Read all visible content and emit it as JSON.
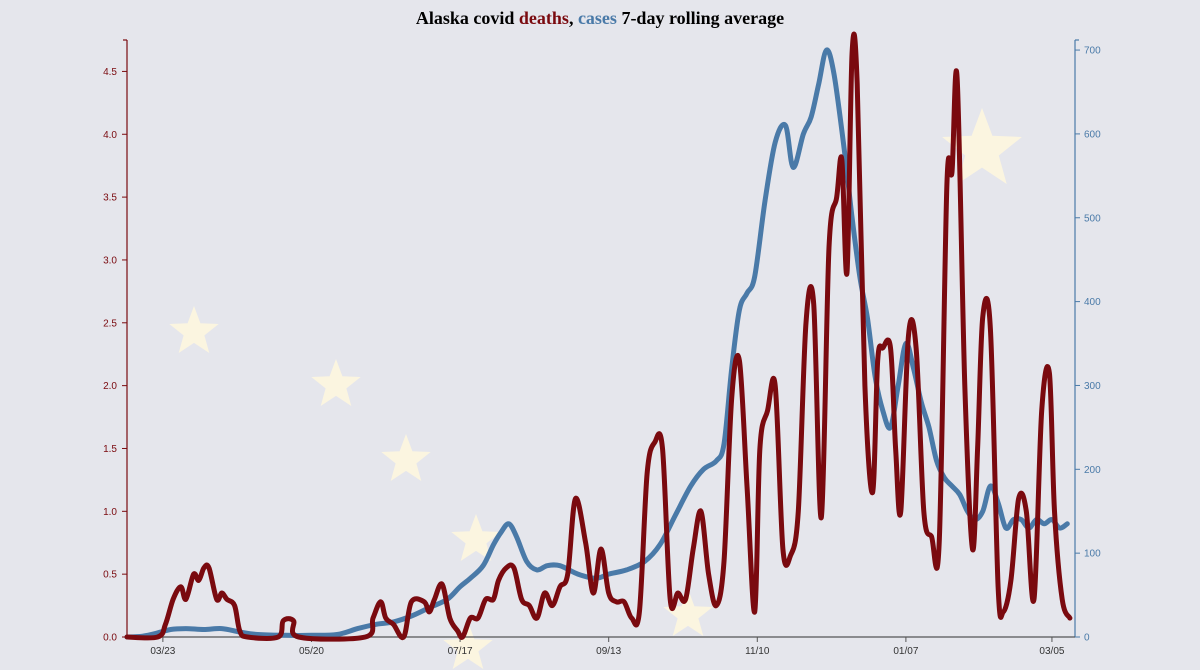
{
  "colors": {
    "background": "#e5e6ec",
    "deaths": "#7a0a0f",
    "cases": "#4a7aa8",
    "axis": "#555555",
    "star": "#fff7de"
  },
  "chart_data": {
    "type": "line",
    "title": {
      "part1": "Alaska covid ",
      "part2": "deaths",
      "part3": ", ",
      "part4": "cases",
      "part5": " 7-day rolling average"
    },
    "x_range": [
      "2020-03-09",
      "2021-03-14"
    ],
    "x_ticks": [
      {
        "date": "2020-03-23",
        "label": "03/23"
      },
      {
        "date": "2020-05-20",
        "label": "05/20"
      },
      {
        "date": "2020-07-17",
        "label": "07/17"
      },
      {
        "date": "2020-09-13",
        "label": "09/13"
      },
      {
        "date": "2020-11-10",
        "label": "11/10"
      },
      {
        "date": "2021-01-07",
        "label": "01/07"
      },
      {
        "date": "2021-03-05",
        "label": "03/05"
      }
    ],
    "y_left": {
      "range": [
        0,
        4.75
      ],
      "ticks": [
        {
          "value": 0,
          "label": "0.0"
        },
        {
          "value": 0.5,
          "label": "0.5"
        },
        {
          "value": 1.0,
          "label": "1.0"
        },
        {
          "value": 1.5,
          "label": "1.5"
        },
        {
          "value": 2.0,
          "label": "2.0"
        },
        {
          "value": 2.5,
          "label": "2.5"
        },
        {
          "value": 3.0,
          "label": "3.0"
        },
        {
          "value": 3.5,
          "label": "3.5"
        },
        {
          "value": 4.0,
          "label": "4.0"
        },
        {
          "value": 4.5,
          "label": "4.5"
        }
      ]
    },
    "y_right": {
      "range": [
        0,
        712
      ],
      "ticks": [
        {
          "value": 0,
          "label": "0"
        },
        {
          "value": 100,
          "label": "100"
        },
        {
          "value": 200,
          "label": "200"
        },
        {
          "value": 300,
          "label": "300"
        },
        {
          "value": 400,
          "label": "400"
        },
        {
          "value": 500,
          "label": "500"
        },
        {
          "value": 600,
          "label": "600"
        },
        {
          "value": 700,
          "label": "700"
        }
      ]
    },
    "grid": false,
    "series": [
      {
        "name": "deaths",
        "axis": "left",
        "points": [
          [
            "2020-03-09",
            0
          ],
          [
            "2020-03-21",
            0
          ],
          [
            "2020-03-24",
            0.1
          ],
          [
            "2020-03-27",
            0.3
          ],
          [
            "2020-03-30",
            0.4
          ],
          [
            "2020-04-01",
            0.3
          ],
          [
            "2020-04-04",
            0.5
          ],
          [
            "2020-04-06",
            0.45
          ],
          [
            "2020-04-08",
            0.55
          ],
          [
            "2020-04-10",
            0.55
          ],
          [
            "2020-04-13",
            0.3
          ],
          [
            "2020-04-15",
            0.35
          ],
          [
            "2020-04-17",
            0.3
          ],
          [
            "2020-04-20",
            0.25
          ],
          [
            "2020-04-22",
            0.05
          ],
          [
            "2020-04-25",
            0
          ],
          [
            "2020-05-07",
            0
          ],
          [
            "2020-05-09",
            0.13
          ],
          [
            "2020-05-13",
            0.13
          ],
          [
            "2020-05-15",
            0
          ],
          [
            "2020-06-10",
            0
          ],
          [
            "2020-06-13",
            0.15
          ],
          [
            "2020-06-16",
            0.28
          ],
          [
            "2020-06-18",
            0.15
          ],
          [
            "2020-06-21",
            0.1
          ],
          [
            "2020-06-25",
            0
          ],
          [
            "2020-06-28",
            0.28
          ],
          [
            "2020-07-03",
            0.28
          ],
          [
            "2020-07-05",
            0.2
          ],
          [
            "2020-07-07",
            0.3
          ],
          [
            "2020-07-10",
            0.42
          ],
          [
            "2020-07-13",
            0.15
          ],
          [
            "2020-07-16",
            0.05
          ],
          [
            "2020-07-18",
            0
          ],
          [
            "2020-07-21",
            0.15
          ],
          [
            "2020-07-24",
            0.15
          ],
          [
            "2020-07-27",
            0.3
          ],
          [
            "2020-07-30",
            0.3
          ],
          [
            "2020-08-01",
            0.45
          ],
          [
            "2020-08-04",
            0.55
          ],
          [
            "2020-08-07",
            0.55
          ],
          [
            "2020-08-10",
            0.3
          ],
          [
            "2020-08-13",
            0.25
          ],
          [
            "2020-08-16",
            0.15
          ],
          [
            "2020-08-19",
            0.35
          ],
          [
            "2020-08-22",
            0.25
          ],
          [
            "2020-08-25",
            0.4
          ],
          [
            "2020-08-28",
            0.5
          ],
          [
            "2020-08-31",
            1.1
          ],
          [
            "2020-09-04",
            0.75
          ],
          [
            "2020-09-07",
            0.35
          ],
          [
            "2020-09-10",
            0.7
          ],
          [
            "2020-09-13",
            0.35
          ],
          [
            "2020-09-16",
            0.28
          ],
          [
            "2020-09-19",
            0.28
          ],
          [
            "2020-09-22",
            0.15
          ],
          [
            "2020-09-25",
            0.2
          ],
          [
            "2020-09-28",
            1.3
          ],
          [
            "2020-10-01",
            1.55
          ],
          [
            "2020-10-04",
            1.5
          ],
          [
            "2020-10-07",
            0.3
          ],
          [
            "2020-10-10",
            0.35
          ],
          [
            "2020-10-13",
            0.3
          ],
          [
            "2020-10-16",
            0.7
          ],
          [
            "2020-10-19",
            1.0
          ],
          [
            "2020-10-22",
            0.5
          ],
          [
            "2020-10-25",
            0.25
          ],
          [
            "2020-10-28",
            0.6
          ],
          [
            "2020-10-31",
            1.9
          ],
          [
            "2020-11-03",
            2.2
          ],
          [
            "2020-11-06",
            1.2
          ],
          [
            "2020-11-09",
            0.2
          ],
          [
            "2020-11-11",
            1.5
          ],
          [
            "2020-11-14",
            1.8
          ],
          [
            "2020-11-17",
            2.0
          ],
          [
            "2020-11-20",
            0.7
          ],
          [
            "2020-11-23",
            0.65
          ],
          [
            "2020-11-26",
            1.0
          ],
          [
            "2020-11-29",
            2.5
          ],
          [
            "2020-12-02",
            2.65
          ],
          [
            "2020-12-05",
            0.95
          ],
          [
            "2020-12-08",
            3.1
          ],
          [
            "2020-12-11",
            3.5
          ],
          [
            "2020-12-13",
            3.8
          ],
          [
            "2020-12-15",
            2.9
          ],
          [
            "2020-12-17",
            4.65
          ],
          [
            "2020-12-19",
            4.4
          ],
          [
            "2020-12-22",
            2.0
          ],
          [
            "2020-12-25",
            1.15
          ],
          [
            "2020-12-27",
            2.2
          ],
          [
            "2020-12-29",
            2.3
          ],
          [
            "2021-01-01",
            2.3
          ],
          [
            "2021-01-03",
            1.5
          ],
          [
            "2021-01-05",
            1.0
          ],
          [
            "2021-01-08",
            2.4
          ],
          [
            "2021-01-11",
            2.3
          ],
          [
            "2021-01-14",
            1.0
          ],
          [
            "2021-01-17",
            0.8
          ],
          [
            "2021-01-20",
            0.75
          ],
          [
            "2021-01-23",
            3.6
          ],
          [
            "2021-01-25",
            3.7
          ],
          [
            "2021-01-27",
            4.45
          ],
          [
            "2021-01-30",
            2.0
          ],
          [
            "2021-02-02",
            0.7
          ],
          [
            "2021-02-04",
            1.5
          ],
          [
            "2021-02-06",
            2.55
          ],
          [
            "2021-02-09",
            2.45
          ],
          [
            "2021-02-12",
            0.4
          ],
          [
            "2021-02-14",
            0.2
          ],
          [
            "2021-02-17",
            0.45
          ],
          [
            "2021-02-20",
            1.1
          ],
          [
            "2021-02-23",
            1.0
          ],
          [
            "2021-02-26",
            0.3
          ],
          [
            "2021-03-01",
            1.8
          ],
          [
            "2021-03-04",
            2.1
          ],
          [
            "2021-03-06",
            1.0
          ],
          [
            "2021-03-09",
            0.3
          ],
          [
            "2021-03-12",
            0.15
          ]
        ]
      },
      {
        "name": "cases",
        "axis": "right",
        "points": [
          [
            "2020-03-09",
            0
          ],
          [
            "2020-03-15",
            1
          ],
          [
            "2020-03-20",
            4
          ],
          [
            "2020-03-26",
            9
          ],
          [
            "2020-04-01",
            10
          ],
          [
            "2020-04-08",
            9
          ],
          [
            "2020-04-15",
            10
          ],
          [
            "2020-04-22",
            6
          ],
          [
            "2020-04-29",
            3
          ],
          [
            "2020-05-10",
            2
          ],
          [
            "2020-05-20",
            2
          ],
          [
            "2020-05-30",
            3
          ],
          [
            "2020-06-07",
            10
          ],
          [
            "2020-06-14",
            15
          ],
          [
            "2020-06-21",
            18
          ],
          [
            "2020-06-28",
            25
          ],
          [
            "2020-07-05",
            35
          ],
          [
            "2020-07-12",
            45
          ],
          [
            "2020-07-17",
            60
          ],
          [
            "2020-07-21",
            70
          ],
          [
            "2020-07-26",
            85
          ],
          [
            "2020-07-30",
            110
          ],
          [
            "2020-08-02",
            125
          ],
          [
            "2020-08-05",
            135
          ],
          [
            "2020-08-08",
            120
          ],
          [
            "2020-08-12",
            90
          ],
          [
            "2020-08-16",
            80
          ],
          [
            "2020-08-20",
            85
          ],
          [
            "2020-08-25",
            85
          ],
          [
            "2020-09-01",
            75
          ],
          [
            "2020-09-08",
            70
          ],
          [
            "2020-09-13",
            75
          ],
          [
            "2020-09-20",
            80
          ],
          [
            "2020-09-27",
            90
          ],
          [
            "2020-10-03",
            110
          ],
          [
            "2020-10-09",
            145
          ],
          [
            "2020-10-15",
            180
          ],
          [
            "2020-10-20",
            200
          ],
          [
            "2020-10-25",
            210
          ],
          [
            "2020-10-28",
            230
          ],
          [
            "2020-10-31",
            320
          ],
          [
            "2020-11-03",
            390
          ],
          [
            "2020-11-06",
            410
          ],
          [
            "2020-11-09",
            430
          ],
          [
            "2020-11-13",
            520
          ],
          [
            "2020-11-17",
            590
          ],
          [
            "2020-11-21",
            610
          ],
          [
            "2020-11-24",
            560
          ],
          [
            "2020-11-28",
            600
          ],
          [
            "2020-12-01",
            620
          ],
          [
            "2020-12-04",
            660
          ],
          [
            "2020-12-07",
            700
          ],
          [
            "2020-12-10",
            670
          ],
          [
            "2020-12-14",
            580
          ],
          [
            "2020-12-17",
            500
          ],
          [
            "2020-12-20",
            430
          ],
          [
            "2020-12-23",
            380
          ],
          [
            "2020-12-26",
            310
          ],
          [
            "2020-12-29",
            270
          ],
          [
            "2021-01-01",
            250
          ],
          [
            "2021-01-04",
            300
          ],
          [
            "2021-01-07",
            350
          ],
          [
            "2021-01-10",
            320
          ],
          [
            "2021-01-13",
            280
          ],
          [
            "2021-01-16",
            250
          ],
          [
            "2021-01-19",
            210
          ],
          [
            "2021-01-22",
            190
          ],
          [
            "2021-01-25",
            180
          ],
          [
            "2021-01-28",
            170
          ],
          [
            "2021-01-31",
            150
          ],
          [
            "2021-02-03",
            140
          ],
          [
            "2021-02-06",
            150
          ],
          [
            "2021-02-09",
            180
          ],
          [
            "2021-02-12",
            160
          ],
          [
            "2021-02-15",
            130
          ],
          [
            "2021-02-18",
            140
          ],
          [
            "2021-02-21",
            140
          ],
          [
            "2021-02-24",
            130
          ],
          [
            "2021-02-27",
            140
          ],
          [
            "2021-03-02",
            135
          ],
          [
            "2021-03-05",
            140
          ],
          [
            "2021-03-08",
            130
          ],
          [
            "2021-03-11",
            135
          ]
        ]
      }
    ]
  }
}
